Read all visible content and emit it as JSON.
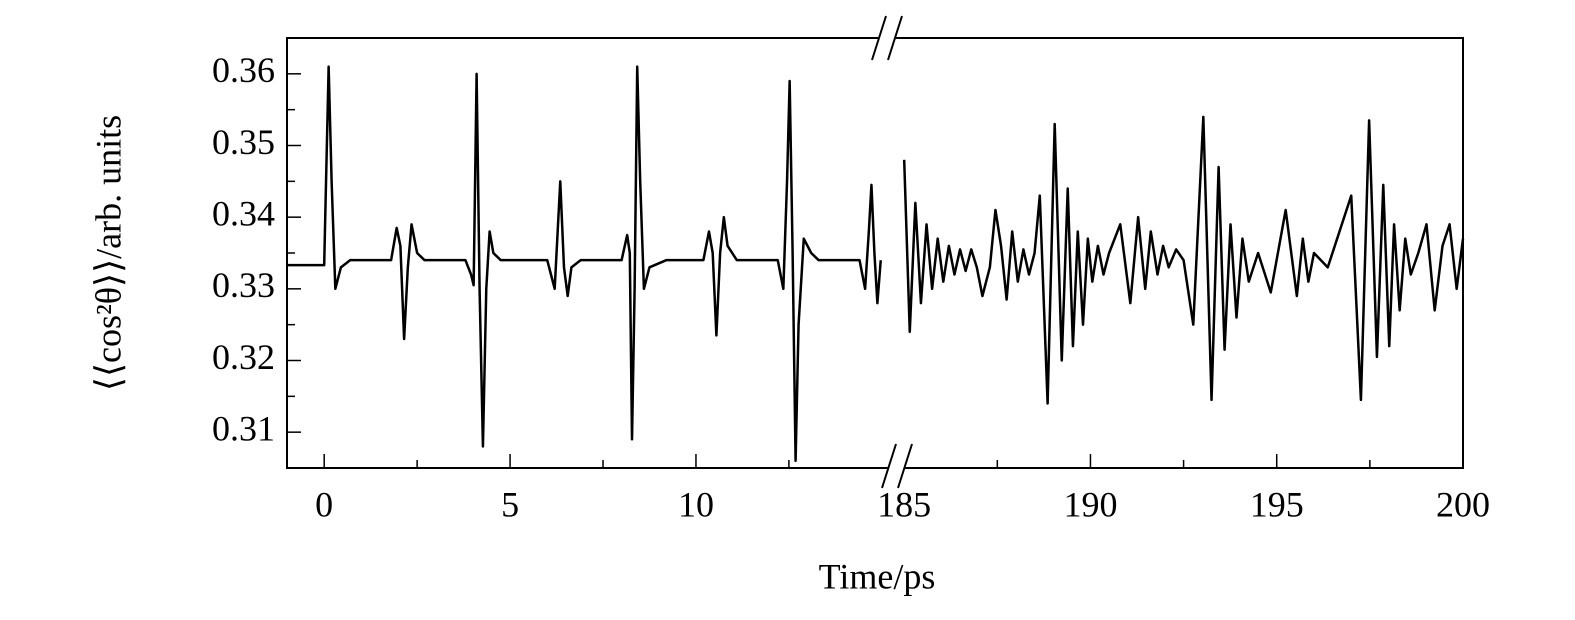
{
  "chart_data": {
    "type": "line",
    "xlabel": "Time/ps",
    "ylabel": "⟨⟨cos²θ⟩⟩/arb. units",
    "color": "#000000",
    "ylim": [
      0.305,
      0.365
    ],
    "yticks": [
      0.31,
      0.32,
      0.33,
      0.34,
      0.35,
      0.36
    ],
    "y_minor_ticks": [
      0.315,
      0.325,
      0.335,
      0.345,
      0.355
    ],
    "panels": [
      {
        "xlim": [
          -1,
          15.3
        ],
        "xticks": [
          0,
          5,
          10
        ],
        "x_minor_ticks": [
          2.5,
          7.5,
          12.5
        ],
        "x": [
          -1,
          0,
          0.05,
          0.12,
          0.2,
          0.3,
          0.45,
          0.7,
          1.8,
          1.95,
          2.05,
          2.15,
          2.25,
          2.35,
          2.5,
          2.7,
          3.8,
          3.95,
          4.02,
          4.1,
          4.18,
          4.27,
          4.36,
          4.45,
          4.55,
          4.75,
          6.0,
          6.1,
          6.2,
          6.3,
          6.35,
          6.45,
          6.55,
          6.65,
          6.9,
          8.0,
          8.15,
          8.22,
          8.28,
          8.35,
          8.42,
          8.5,
          8.6,
          8.75,
          9.2,
          10.2,
          10.35,
          10.45,
          10.55,
          10.65,
          10.75,
          10.85,
          11.1,
          12.2,
          12.35,
          12.45,
          12.52,
          12.6,
          12.68,
          12.76,
          12.9,
          13.1,
          13.3,
          14.4,
          14.55,
          14.65,
          14.72,
          14.8,
          14.88,
          14.97
        ],
        "values": [
          0.3333,
          0.3333,
          0.345,
          0.361,
          0.345,
          0.33,
          0.333,
          0.334,
          0.334,
          0.3385,
          0.336,
          0.323,
          0.333,
          0.339,
          0.335,
          0.334,
          0.334,
          0.332,
          0.3305,
          0.36,
          0.33,
          0.308,
          0.33,
          0.338,
          0.335,
          0.334,
          0.334,
          0.332,
          0.33,
          0.34,
          0.345,
          0.333,
          0.329,
          0.333,
          0.334,
          0.334,
          0.3375,
          0.335,
          0.309,
          0.33,
          0.361,
          0.345,
          0.33,
          0.333,
          0.334,
          0.334,
          0.338,
          0.335,
          0.3235,
          0.335,
          0.34,
          0.336,
          0.334,
          0.334,
          0.33,
          0.345,
          0.359,
          0.335,
          0.306,
          0.325,
          0.337,
          0.335,
          0.334,
          0.334,
          0.33,
          0.338,
          0.3445,
          0.335,
          0.328,
          0.334
        ]
      },
      {
        "xlim": [
          184.7,
          200
        ],
        "xticks": [
          185,
          190,
          195,
          200
        ],
        "x_minor_ticks": [
          187.5,
          192.5,
          197.5
        ],
        "x": [
          185.0,
          185.15,
          185.3,
          185.45,
          185.6,
          185.75,
          185.9,
          186.05,
          186.2,
          186.35,
          186.5,
          186.65,
          186.8,
          186.95,
          187.1,
          187.3,
          187.45,
          187.6,
          187.75,
          187.9,
          188.05,
          188.2,
          188.35,
          188.5,
          188.64,
          188.85,
          189.04,
          189.23,
          189.39,
          189.53,
          189.66,
          189.8,
          189.93,
          190.05,
          190.2,
          190.35,
          190.5,
          190.8,
          191.07,
          191.28,
          191.47,
          191.62,
          191.8,
          191.95,
          192.1,
          192.3,
          192.5,
          192.76,
          193.03,
          193.25,
          193.44,
          193.6,
          193.76,
          193.92,
          194.08,
          194.25,
          194.5,
          194.84,
          195.24,
          195.54,
          195.7,
          195.85,
          196.0,
          196.37,
          197.0,
          197.26,
          197.48,
          197.69,
          197.86,
          198.02,
          198.15,
          198.3,
          198.45,
          198.6,
          198.8,
          199.02,
          199.24,
          199.45,
          199.64,
          199.83,
          200.0
        ],
        "values": [
          0.348,
          0.324,
          0.342,
          0.328,
          0.339,
          0.33,
          0.337,
          0.331,
          0.336,
          0.332,
          0.3355,
          0.3325,
          0.3355,
          0.333,
          0.329,
          0.333,
          0.341,
          0.336,
          0.3285,
          0.338,
          0.331,
          0.3355,
          0.332,
          0.335,
          0.343,
          0.314,
          0.353,
          0.32,
          0.344,
          0.322,
          0.338,
          0.325,
          0.337,
          0.331,
          0.336,
          0.332,
          0.335,
          0.339,
          0.328,
          0.34,
          0.33,
          0.338,
          0.332,
          0.336,
          0.333,
          0.3355,
          0.334,
          0.325,
          0.354,
          0.3145,
          0.347,
          0.3215,
          0.339,
          0.326,
          0.337,
          0.331,
          0.335,
          0.3295,
          0.341,
          0.329,
          0.337,
          0.331,
          0.335,
          0.333,
          0.343,
          0.3145,
          0.3535,
          0.3205,
          0.3445,
          0.322,
          0.339,
          0.327,
          0.337,
          0.332,
          0.335,
          0.339,
          0.327,
          0.336,
          0.339,
          0.33,
          0.337
        ]
      }
    ]
  }
}
